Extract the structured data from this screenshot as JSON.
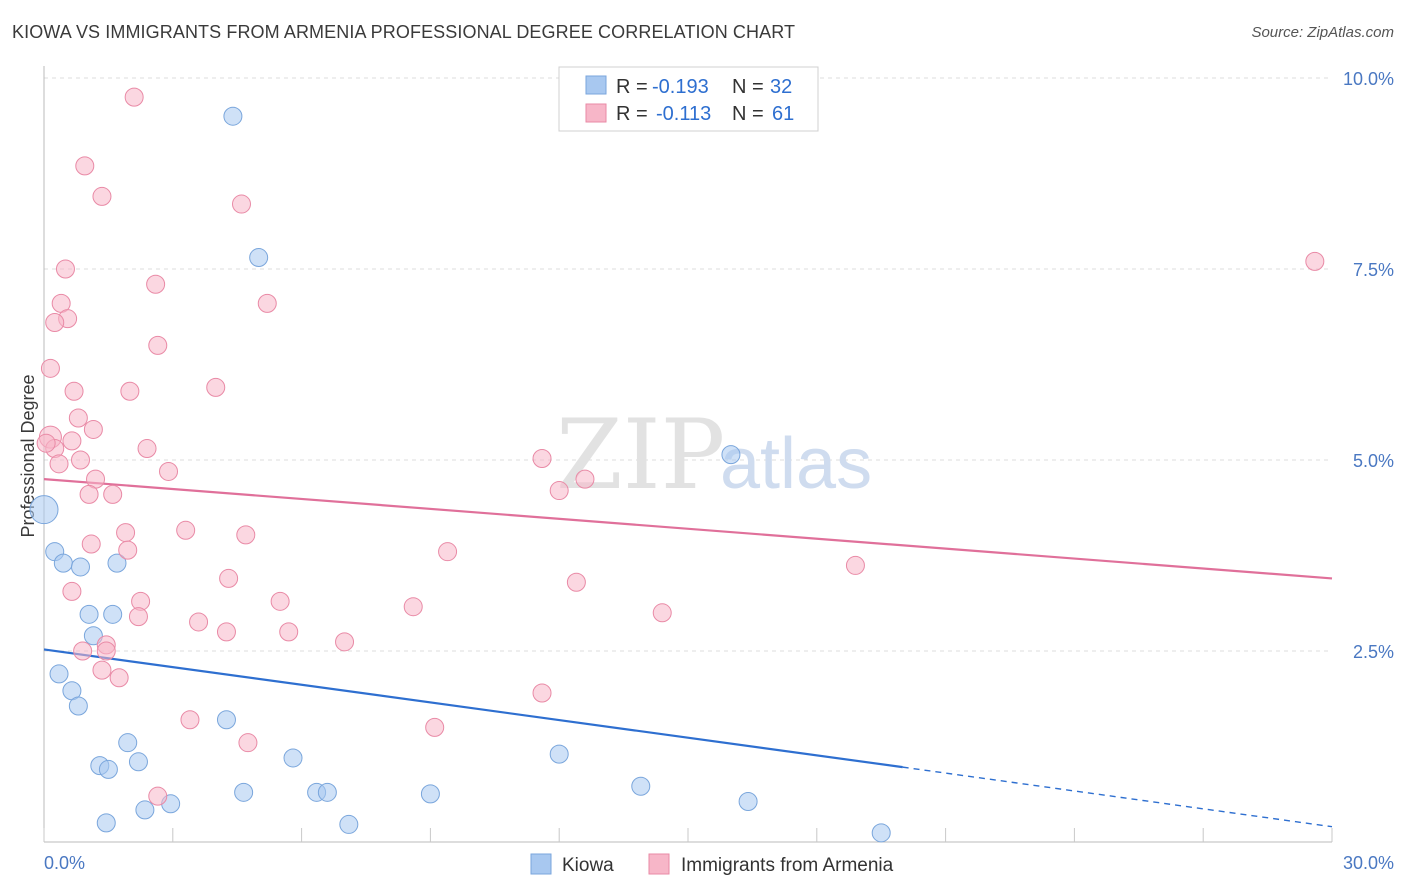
{
  "header": {
    "title": "KIOWA VS IMMIGRANTS FROM ARMENIA PROFESSIONAL DEGREE CORRELATION CHART",
    "source": "Source: ZipAtlas.com"
  },
  "watermark": {
    "zip": "ZIP",
    "atlas": "atlas"
  },
  "legend": {
    "rows": [
      {
        "r_label": "R =",
        "r_value": "-0.193",
        "n_label": "N =",
        "n_value": "32",
        "color": "#a8c8f0"
      },
      {
        "r_label": "R =",
        "r_value": "-0.113",
        "n_label": "N =",
        "n_value": "61",
        "color": "#f7b6c8"
      }
    ]
  },
  "bottom_legend": [
    {
      "label": "Kiowa",
      "color": "#a8c8f0"
    },
    {
      "label": "Immigrants from Armenia",
      "color": "#f7b6c8"
    }
  ],
  "chart_data": {
    "type": "scatter",
    "ylabel": "Professional Degree",
    "xlim": [
      0,
      30
    ],
    "ylim": [
      0,
      10
    ],
    "x_ticks": [
      "0.0%",
      "30.0%"
    ],
    "y_ticks": [
      {
        "value": 2.5,
        "label": "2.5%"
      },
      {
        "value": 5.0,
        "label": "5.0%"
      },
      {
        "value": 7.5,
        "label": "7.5%"
      },
      {
        "value": 10.0,
        "label": "10.0%"
      }
    ],
    "grid": true,
    "series": [
      {
        "name": "Kiowa",
        "color": "#a8c8f0",
        "stroke": "#7aa6dc",
        "line_color": "#2e6fd0",
        "trend": {
          "x0": 0,
          "y0": 2.52,
          "x1": 20,
          "y1": 0.98,
          "dash_to_x": 30,
          "dash_to_y": 0.2
        },
        "points": [
          [
            0.0,
            4.35,
            14
          ],
          [
            0.25,
            3.8,
            9
          ],
          [
            0.45,
            3.65,
            9
          ],
          [
            0.85,
            3.6,
            9
          ],
          [
            1.7,
            3.65,
            9
          ],
          [
            1.05,
            2.98,
            9
          ],
          [
            1.6,
            2.98,
            9
          ],
          [
            1.15,
            2.7,
            9
          ],
          [
            0.35,
            2.2,
            9
          ],
          [
            0.65,
            1.98,
            9
          ],
          [
            0.8,
            1.78,
            9
          ],
          [
            1.95,
            1.3,
            9
          ],
          [
            2.2,
            1.05,
            9
          ],
          [
            1.3,
            1.0,
            9
          ],
          [
            1.5,
            0.95,
            9
          ],
          [
            4.25,
            1.6,
            9
          ],
          [
            5.8,
            1.1,
            9
          ],
          [
            12.0,
            1.15,
            9
          ],
          [
            4.65,
            0.65,
            9
          ],
          [
            6.35,
            0.65,
            9
          ],
          [
            6.6,
            0.65,
            9
          ],
          [
            9.0,
            0.63,
            9
          ],
          [
            13.9,
            0.73,
            9
          ],
          [
            16.4,
            0.53,
            9
          ],
          [
            2.95,
            0.5,
            9
          ],
          [
            2.35,
            0.42,
            9
          ],
          [
            1.45,
            0.25,
            9
          ],
          [
            7.1,
            0.23,
            9
          ],
          [
            19.5,
            0.12,
            9
          ],
          [
            4.4,
            9.5,
            9
          ],
          [
            5.0,
            7.65,
            9
          ],
          [
            16.0,
            5.07,
            9
          ]
        ]
      },
      {
        "name": "Immigrants from Armenia",
        "color": "#f7b6c8",
        "stroke": "#e98aa6",
        "line_color": "#e0709a",
        "trend": {
          "x0": 0,
          "y0": 4.75,
          "x1": 30,
          "y1": 3.45
        },
        "points": [
          [
            2.1,
            9.75,
            9
          ],
          [
            0.95,
            8.85,
            9
          ],
          [
            1.35,
            8.45,
            9
          ],
          [
            4.6,
            8.35,
            9
          ],
          [
            0.5,
            7.5,
            9
          ],
          [
            2.6,
            7.3,
            9
          ],
          [
            5.2,
            7.05,
            9
          ],
          [
            0.4,
            7.05,
            9
          ],
          [
            0.55,
            6.85,
            9
          ],
          [
            0.25,
            6.8,
            9
          ],
          [
            2.65,
            6.5,
            9
          ],
          [
            0.15,
            6.2,
            9
          ],
          [
            4.0,
            5.95,
            9
          ],
          [
            0.7,
            5.9,
            9
          ],
          [
            2.0,
            5.9,
            9
          ],
          [
            0.8,
            5.55,
            9
          ],
          [
            1.15,
            5.4,
            9
          ],
          [
            0.15,
            5.3,
            11
          ],
          [
            0.65,
            5.25,
            9
          ],
          [
            0.25,
            5.15,
            9
          ],
          [
            2.4,
            5.15,
            9
          ],
          [
            0.85,
            5.0,
            9
          ],
          [
            0.35,
            4.95,
            9
          ],
          [
            2.9,
            4.85,
            9
          ],
          [
            1.2,
            4.75,
            9
          ],
          [
            11.6,
            5.02,
            9
          ],
          [
            12.6,
            4.75,
            9
          ],
          [
            12.0,
            4.6,
            9
          ],
          [
            1.05,
            4.55,
            9
          ],
          [
            1.6,
            4.55,
            9
          ],
          [
            29.6,
            7.6,
            9
          ],
          [
            1.9,
            4.05,
            9
          ],
          [
            3.3,
            4.08,
            9
          ],
          [
            4.7,
            4.02,
            9
          ],
          [
            1.1,
            3.9,
            9
          ],
          [
            1.95,
            3.82,
            9
          ],
          [
            9.4,
            3.8,
            9
          ],
          [
            18.9,
            3.62,
            9
          ],
          [
            4.3,
            3.45,
            9
          ],
          [
            12.4,
            3.4,
            9
          ],
          [
            0.65,
            3.28,
            9
          ],
          [
            2.25,
            3.15,
            9
          ],
          [
            5.5,
            3.15,
            9
          ],
          [
            8.6,
            3.08,
            9
          ],
          [
            14.4,
            3.0,
            9
          ],
          [
            2.2,
            2.95,
            9
          ],
          [
            3.6,
            2.88,
            9
          ],
          [
            4.25,
            2.75,
            9
          ],
          [
            5.7,
            2.75,
            9
          ],
          [
            7.0,
            2.62,
            9
          ],
          [
            1.45,
            2.58,
            9
          ],
          [
            1.45,
            2.5,
            9
          ],
          [
            0.9,
            2.5,
            9
          ],
          [
            1.35,
            2.25,
            9
          ],
          [
            1.75,
            2.15,
            9
          ],
          [
            11.6,
            1.95,
            9
          ],
          [
            3.4,
            1.6,
            9
          ],
          [
            9.1,
            1.5,
            9
          ],
          [
            4.75,
            1.3,
            9
          ],
          [
            2.65,
            0.6,
            9
          ],
          [
            0.05,
            5.22,
            9
          ]
        ]
      }
    ]
  }
}
